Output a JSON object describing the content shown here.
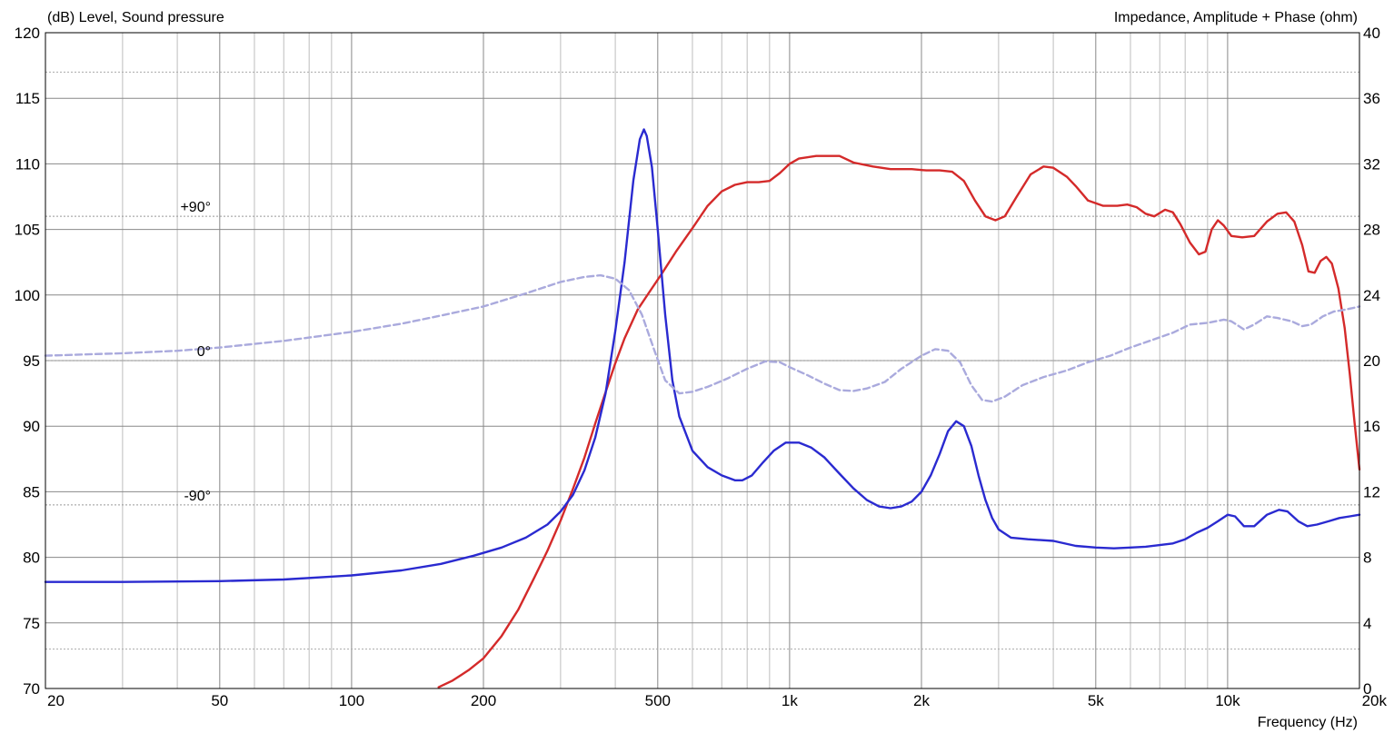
{
  "chart_data": {
    "type": "line",
    "title": "",
    "left_axis_title": "(dB)  Level, Sound pressure",
    "right_axis_title": "Impedance, Amplitude + Phase  (ohm)",
    "xlabel": "Frequency  (Hz)",
    "x_scale": "log",
    "xlim": [
      20,
      20000
    ],
    "ylim": [
      70,
      120
    ],
    "y2lim": [
      0,
      40
    ],
    "grid": true,
    "x_tick_labels": [
      {
        "value": 20,
        "label": "20"
      },
      {
        "value": 50,
        "label": "50"
      },
      {
        "value": 100,
        "label": "100"
      },
      {
        "value": 200,
        "label": "200"
      },
      {
        "value": 500,
        "label": "500"
      },
      {
        "value": 1000,
        "label": "1k"
      },
      {
        "value": 2000,
        "label": "2k"
      },
      {
        "value": 5000,
        "label": "5k"
      },
      {
        "value": 10000,
        "label": "10k"
      },
      {
        "value": 20000,
        "label": "20k"
      }
    ],
    "y_ticks": [
      120,
      115,
      110,
      105,
      100,
      95,
      90,
      85,
      80,
      75,
      70
    ],
    "y2_ticks": [
      40,
      36,
      32,
      28,
      24,
      20,
      16,
      12,
      8,
      4,
      0
    ],
    "phase_labels": [
      {
        "label": "+90°",
        "y2": 28.8
      },
      {
        "label": "0°",
        "y2": 20
      },
      {
        "label": "-90°",
        "y2": 11.2
      }
    ],
    "colors": {
      "spl": "#d42a2a",
      "impedance": "#2a2ad0",
      "phase": "#aaaadd",
      "grid": "#9a9a9a",
      "grid_minor": "#c8c8c8"
    },
    "series": [
      {
        "axis": "left",
        "color": "#d42a2a",
        "dashed": false,
        "points": [
          [
            158,
            70.1
          ],
          [
            170,
            70.6
          ],
          [
            185,
            71.4
          ],
          [
            200,
            72.3
          ],
          [
            220,
            74.0
          ],
          [
            240,
            76.0
          ],
          [
            260,
            78.3
          ],
          [
            280,
            80.5
          ],
          [
            300,
            82.8
          ],
          [
            320,
            85.2
          ],
          [
            340,
            87.6
          ],
          [
            360,
            90.2
          ],
          [
            380,
            92.6
          ],
          [
            400,
            94.8
          ],
          [
            420,
            96.7
          ],
          [
            450,
            98.9
          ],
          [
            480,
            100.3
          ],
          [
            510,
            101.6
          ],
          [
            550,
            103.3
          ],
          [
            600,
            105.1
          ],
          [
            650,
            106.8
          ],
          [
            700,
            107.9
          ],
          [
            750,
            108.4
          ],
          [
            800,
            108.6
          ],
          [
            850,
            108.6
          ],
          [
            900,
            108.7
          ],
          [
            950,
            109.3
          ],
          [
            1000,
            110.0
          ],
          [
            1050,
            110.4
          ],
          [
            1150,
            110.6
          ],
          [
            1300,
            110.6
          ],
          [
            1400,
            110.1
          ],
          [
            1550,
            109.8
          ],
          [
            1700,
            109.6
          ],
          [
            1900,
            109.6
          ],
          [
            2050,
            109.5
          ],
          [
            2200,
            109.5
          ],
          [
            2350,
            109.4
          ],
          [
            2500,
            108.7
          ],
          [
            2650,
            107.2
          ],
          [
            2800,
            106.0
          ],
          [
            2950,
            105.7
          ],
          [
            3100,
            106.0
          ],
          [
            3300,
            107.5
          ],
          [
            3550,
            109.2
          ],
          [
            3800,
            109.8
          ],
          [
            4000,
            109.7
          ],
          [
            4300,
            109.0
          ],
          [
            4500,
            108.3
          ],
          [
            4800,
            107.2
          ],
          [
            5200,
            106.8
          ],
          [
            5600,
            106.8
          ],
          [
            5900,
            106.9
          ],
          [
            6200,
            106.7
          ],
          [
            6500,
            106.2
          ],
          [
            6800,
            106.0
          ],
          [
            7200,
            106.5
          ],
          [
            7500,
            106.3
          ],
          [
            7800,
            105.4
          ],
          [
            8200,
            104.0
          ],
          [
            8600,
            103.1
          ],
          [
            8900,
            103.3
          ],
          [
            9200,
            105.0
          ],
          [
            9500,
            105.7
          ],
          [
            9800,
            105.3
          ],
          [
            10200,
            104.5
          ],
          [
            10800,
            104.4
          ],
          [
            11500,
            104.5
          ],
          [
            12300,
            105.6
          ],
          [
            13000,
            106.2
          ],
          [
            13600,
            106.3
          ],
          [
            14200,
            105.6
          ],
          [
            14800,
            103.8
          ],
          [
            15300,
            101.8
          ],
          [
            15800,
            101.7
          ],
          [
            16300,
            102.6
          ],
          [
            16800,
            102.9
          ],
          [
            17300,
            102.4
          ],
          [
            17900,
            100.5
          ],
          [
            18500,
            97.5
          ],
          [
            19000,
            94.0
          ],
          [
            19500,
            90.2
          ],
          [
            20000,
            86.7
          ]
        ]
      },
      {
        "axis": "right",
        "color": "#2a2ad0",
        "dashed": false,
        "points": [
          [
            20,
            6.5
          ],
          [
            30,
            6.5
          ],
          [
            50,
            6.55
          ],
          [
            70,
            6.65
          ],
          [
            100,
            6.9
          ],
          [
            130,
            7.2
          ],
          [
            160,
            7.6
          ],
          [
            190,
            8.1
          ],
          [
            220,
            8.6
          ],
          [
            250,
            9.2
          ],
          [
            280,
            10.0
          ],
          [
            300,
            10.8
          ],
          [
            320,
            11.8
          ],
          [
            340,
            13.3
          ],
          [
            360,
            15.3
          ],
          [
            380,
            18.0
          ],
          [
            400,
            21.8
          ],
          [
            420,
            26.0
          ],
          [
            440,
            31.0
          ],
          [
            455,
            33.5
          ],
          [
            465,
            34.1
          ],
          [
            472,
            33.7
          ],
          [
            485,
            31.8
          ],
          [
            500,
            28.0
          ],
          [
            520,
            22.8
          ],
          [
            540,
            18.8
          ],
          [
            560,
            16.6
          ],
          [
            600,
            14.5
          ],
          [
            650,
            13.5
          ],
          [
            700,
            13.0
          ],
          [
            750,
            12.7
          ],
          [
            780,
            12.7
          ],
          [
            820,
            13.0
          ],
          [
            870,
            13.8
          ],
          [
            920,
            14.5
          ],
          [
            980,
            15.0
          ],
          [
            1050,
            15.0
          ],
          [
            1120,
            14.7
          ],
          [
            1200,
            14.1
          ],
          [
            1300,
            13.1
          ],
          [
            1400,
            12.2
          ],
          [
            1500,
            11.5
          ],
          [
            1600,
            11.1
          ],
          [
            1700,
            11.0
          ],
          [
            1800,
            11.1
          ],
          [
            1900,
            11.4
          ],
          [
            2000,
            12.0
          ],
          [
            2100,
            13.0
          ],
          [
            2200,
            14.3
          ],
          [
            2300,
            15.7
          ],
          [
            2400,
            16.3
          ],
          [
            2500,
            16.0
          ],
          [
            2600,
            14.8
          ],
          [
            2700,
            13.0
          ],
          [
            2800,
            11.5
          ],
          [
            2900,
            10.4
          ],
          [
            3000,
            9.7
          ],
          [
            3200,
            9.2
          ],
          [
            3500,
            9.1
          ],
          [
            4000,
            9.0
          ],
          [
            4500,
            8.7
          ],
          [
            5000,
            8.6
          ],
          [
            5500,
            8.55
          ],
          [
            6000,
            8.6
          ],
          [
            6500,
            8.65
          ],
          [
            7000,
            8.75
          ],
          [
            7500,
            8.85
          ],
          [
            8000,
            9.1
          ],
          [
            8500,
            9.5
          ],
          [
            9000,
            9.8
          ],
          [
            9500,
            10.2
          ],
          [
            10000,
            10.6
          ],
          [
            10400,
            10.5
          ],
          [
            10900,
            9.9
          ],
          [
            11500,
            9.9
          ],
          [
            12300,
            10.6
          ],
          [
            13100,
            10.9
          ],
          [
            13700,
            10.8
          ],
          [
            14500,
            10.2
          ],
          [
            15200,
            9.9
          ],
          [
            16000,
            10.0
          ],
          [
            17000,
            10.2
          ],
          [
            18000,
            10.4
          ],
          [
            19000,
            10.5
          ],
          [
            20000,
            10.6
          ]
        ]
      },
      {
        "axis": "right",
        "color": "#aaaadd",
        "dashed": true,
        "points": [
          [
            20,
            20.3
          ],
          [
            30,
            20.45
          ],
          [
            40,
            20.6
          ],
          [
            50,
            20.8
          ],
          [
            70,
            21.2
          ],
          [
            100,
            21.75
          ],
          [
            130,
            22.25
          ],
          [
            160,
            22.75
          ],
          [
            200,
            23.3
          ],
          [
            250,
            24.1
          ],
          [
            300,
            24.8
          ],
          [
            340,
            25.1
          ],
          [
            370,
            25.2
          ],
          [
            400,
            25.0
          ],
          [
            430,
            24.3
          ],
          [
            460,
            22.8
          ],
          [
            490,
            20.7
          ],
          [
            520,
            18.8
          ],
          [
            560,
            18.0
          ],
          [
            600,
            18.1
          ],
          [
            650,
            18.4
          ],
          [
            720,
            18.9
          ],
          [
            800,
            19.5
          ],
          [
            880,
            19.95
          ],
          [
            950,
            19.9
          ],
          [
            1000,
            19.6
          ],
          [
            1100,
            19.1
          ],
          [
            1200,
            18.6
          ],
          [
            1300,
            18.2
          ],
          [
            1400,
            18.15
          ],
          [
            1500,
            18.3
          ],
          [
            1650,
            18.7
          ],
          [
            1800,
            19.5
          ],
          [
            2000,
            20.3
          ],
          [
            2150,
            20.7
          ],
          [
            2300,
            20.6
          ],
          [
            2450,
            19.9
          ],
          [
            2600,
            18.5
          ],
          [
            2750,
            17.6
          ],
          [
            2900,
            17.5
          ],
          [
            3100,
            17.8
          ],
          [
            3400,
            18.5
          ],
          [
            3800,
            19.0
          ],
          [
            4300,
            19.4
          ],
          [
            4800,
            19.9
          ],
          [
            5400,
            20.3
          ],
          [
            6000,
            20.8
          ],
          [
            6800,
            21.3
          ],
          [
            7500,
            21.7
          ],
          [
            8200,
            22.2
          ],
          [
            9000,
            22.3
          ],
          [
            9800,
            22.5
          ],
          [
            10200,
            22.4
          ],
          [
            10900,
            21.9
          ],
          [
            11500,
            22.2
          ],
          [
            12300,
            22.7
          ],
          [
            13000,
            22.6
          ],
          [
            14000,
            22.4
          ],
          [
            14800,
            22.1
          ],
          [
            15500,
            22.2
          ],
          [
            16500,
            22.7
          ],
          [
            17500,
            23.0
          ],
          [
            18500,
            23.1
          ],
          [
            19300,
            23.2
          ],
          [
            20000,
            23.3
          ]
        ]
      }
    ]
  }
}
